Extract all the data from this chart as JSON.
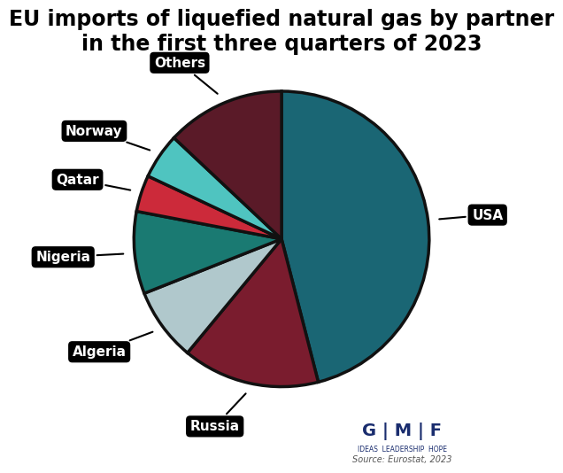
{
  "title": "EU imports of liquefied natural gas by partner\nin the first three quarters of 2023",
  "title_fontsize": 17,
  "source": "Source: Eurostat, 2023",
  "slices": [
    {
      "label": "USA",
      "value": 46,
      "color": "#1a6674"
    },
    {
      "label": "Russia",
      "value": 15,
      "color": "#7a1c2e"
    },
    {
      "label": "Algeria",
      "value": 8,
      "color": "#b0c8cc"
    },
    {
      "label": "Nigeria",
      "value": 9,
      "color": "#1a7a72"
    },
    {
      "label": "Qatar",
      "value": 4,
      "color": "#cc2a3a"
    },
    {
      "label": "Norway",
      "value": 5,
      "color": "#4fc4c0"
    },
    {
      "label": "Others",
      "value": 13,
      "color": "#5a1a28"
    }
  ],
  "edge_color": "#111111",
  "edge_width": 2.5,
  "startangle": 90,
  "background_color": "#ffffff",
  "label_fontsize": 11,
  "label_text_color": "white",
  "gmf_color": "#1a2d6e"
}
